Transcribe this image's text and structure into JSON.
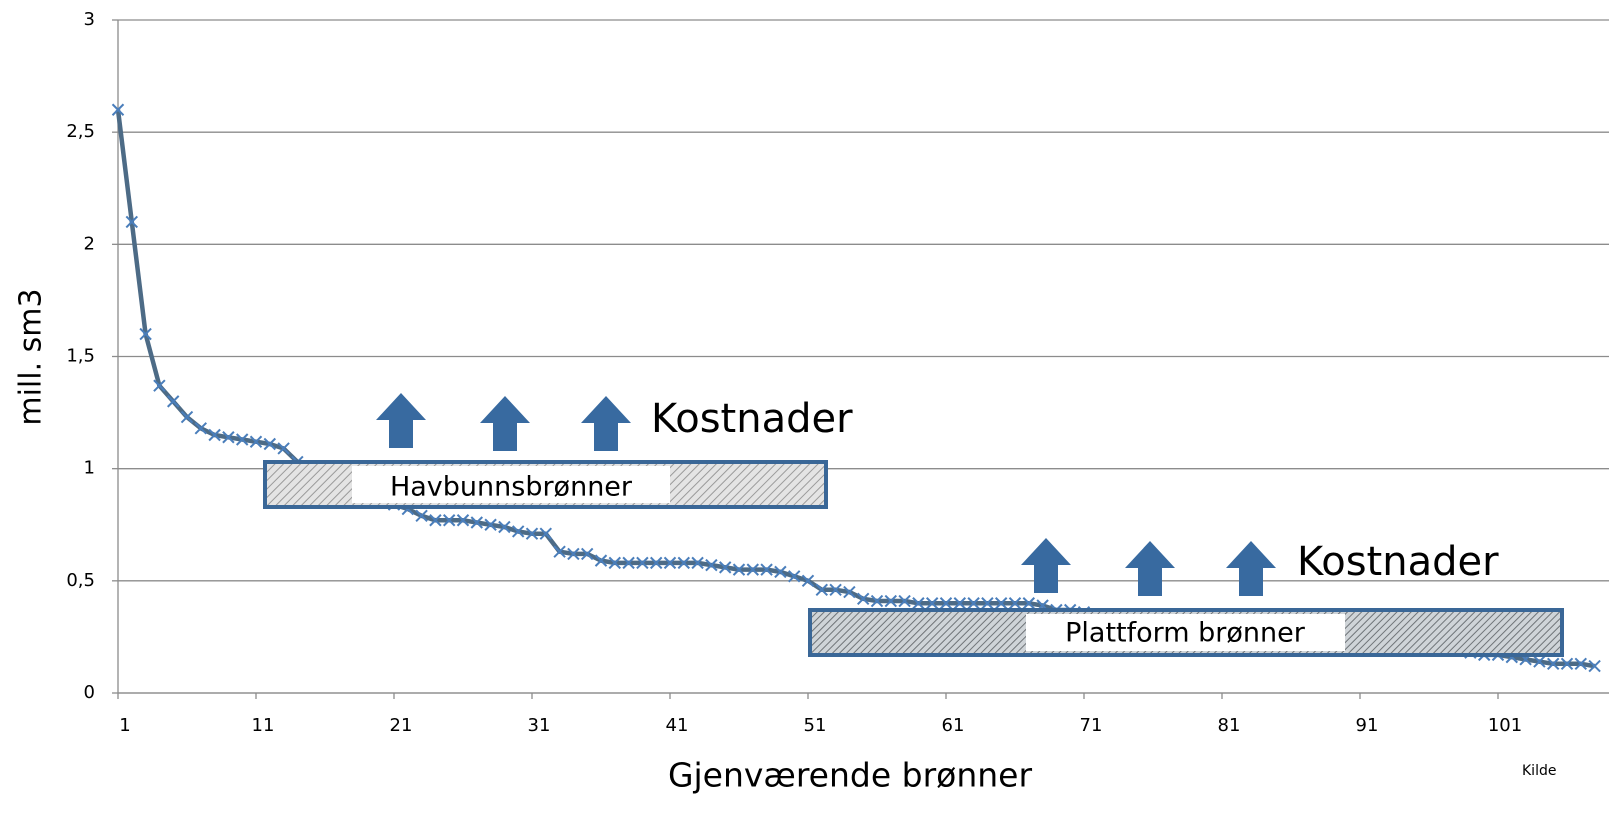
{
  "chart_data": {
    "type": "line",
    "xlabel": "Gjenværende brønner",
    "ylabel": "mill. sm3",
    "annotations": [
      "Kostnader",
      "Kostnader",
      "Havbunnsbrønner",
      "Plattform brønner",
      "Kilde"
    ],
    "x": [
      1,
      2,
      3,
      4,
      5,
      6,
      7,
      8,
      9,
      10,
      11,
      12,
      13,
      14,
      15,
      16,
      17,
      18,
      19,
      20,
      21,
      22,
      23,
      24,
      25,
      26,
      27,
      28,
      29,
      30,
      31,
      32,
      33,
      34,
      35,
      36,
      37,
      38,
      39,
      40,
      41,
      42,
      43,
      44,
      45,
      46,
      47,
      48,
      49,
      50,
      51,
      52,
      53,
      54,
      55,
      56,
      57,
      58,
      59,
      60,
      61,
      62,
      63,
      64,
      65,
      66,
      67,
      68,
      69,
      70,
      71,
      72,
      73,
      74,
      75,
      76,
      77,
      78,
      79,
      80,
      81,
      82,
      83,
      84,
      85,
      86,
      87,
      88,
      89,
      90,
      91,
      92,
      93,
      94,
      95,
      96,
      97,
      98,
      99,
      100,
      101,
      102,
      103,
      104,
      105,
      106,
      107,
      108
    ],
    "series": [
      {
        "color": "#4a7ebb",
        "line_color": "#4d6b86",
        "values": [
          2.6,
          2.1,
          1.6,
          1.37,
          1.3,
          1.23,
          1.18,
          1.15,
          1.14,
          1.13,
          1.12,
          1.11,
          1.09,
          1.03,
          0.98,
          0.95,
          0.92,
          0.9,
          0.88,
          0.86,
          0.84,
          0.82,
          0.79,
          0.77,
          0.77,
          0.77,
          0.76,
          0.75,
          0.74,
          0.72,
          0.71,
          0.71,
          0.63,
          0.62,
          0.62,
          0.59,
          0.58,
          0.58,
          0.58,
          0.58,
          0.58,
          0.58,
          0.58,
          0.57,
          0.56,
          0.55,
          0.55,
          0.55,
          0.54,
          0.52,
          0.5,
          0.46,
          0.46,
          0.45,
          0.42,
          0.41,
          0.41,
          0.41,
          0.4,
          0.4,
          0.4,
          0.4,
          0.4,
          0.4,
          0.4,
          0.4,
          0.4,
          0.39,
          0.37,
          0.37,
          0.36,
          0.35,
          0.35,
          0.34,
          0.34,
          0.33,
          0.33,
          0.32,
          0.31,
          0.31,
          0.3,
          0.29,
          0.29,
          0.28,
          0.27,
          0.27,
          0.26,
          0.25,
          0.25,
          0.24,
          0.23,
          0.23,
          0.22,
          0.21,
          0.21,
          0.2,
          0.19,
          0.19,
          0.18,
          0.17,
          0.17,
          0.16,
          0.15,
          0.14,
          0.13,
          0.13,
          0.13,
          0.12
        ]
      }
    ],
    "xlim": [
      1,
      109
    ],
    "xticks": [
      1,
      11,
      21,
      31,
      41,
      51,
      61,
      71,
      81,
      91,
      101
    ],
    "ylim": [
      0,
      3
    ],
    "yticks": [
      0,
      {
        "value": 0.5,
        "label": "0,5"
      },
      1,
      {
        "value": 1.5,
        "label": "1,5"
      },
      2,
      {
        "value": 2.5,
        "label": "2,5"
      },
      3
    ],
    "grid": true
  }
}
